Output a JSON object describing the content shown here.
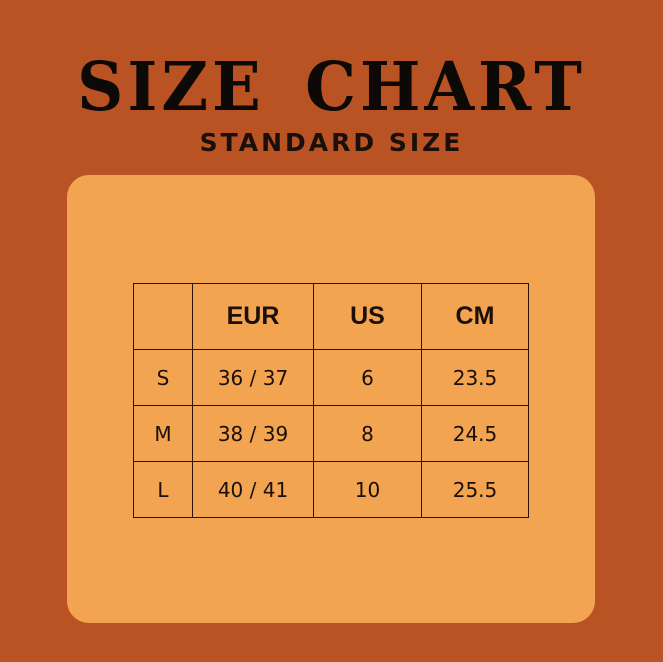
{
  "title": "SIZE CHART",
  "subtitle": "STANDARD SIZE",
  "colors": {
    "background": "#b95323",
    "panel": "#f2a450",
    "text": "#0d0907"
  },
  "table": {
    "headers": [
      "",
      "EUR",
      "US",
      "CM"
    ],
    "rows": [
      [
        "S",
        "36 / 37",
        "6",
        "23.5"
      ],
      [
        "M",
        "38 / 39",
        "8",
        "24.5"
      ],
      [
        "L",
        "40 / 41",
        "10",
        "25.5"
      ]
    ]
  }
}
